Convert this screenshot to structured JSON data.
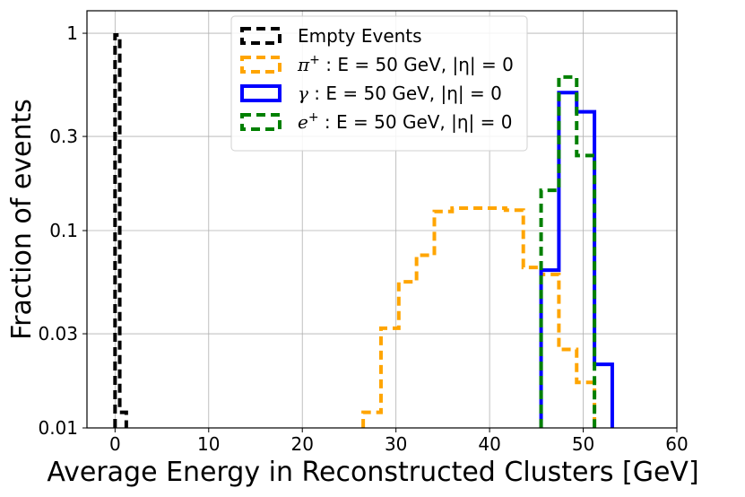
{
  "chart_data": {
    "type": "step",
    "xlabel": "Average Energy in Reconstructed Clusters [GeV]",
    "ylabel": "Fraction of events",
    "xlim": [
      -3,
      60
    ],
    "ylim": [
      0.01,
      1.3
    ],
    "yscale": "log",
    "grid": true,
    "legend_position": "top-center",
    "x_ticks": [
      0,
      10,
      20,
      30,
      40,
      50,
      60
    ],
    "x_tick_labels": [
      "0",
      "10",
      "20",
      "30",
      "40",
      "50",
      "60"
    ],
    "y_ticks": [
      0.01,
      0.03,
      0.1,
      0.3,
      1
    ],
    "y_tick_labels": [
      "0.01",
      "0.03",
      "0.1",
      "0.3",
      "1"
    ],
    "series": [
      {
        "name": "Empty Events",
        "label": "Empty Events",
        "color": "#000000",
        "dash": true,
        "edges": [
          0.0,
          0.5,
          1.2
        ],
        "values": [
          0.98,
          0.012
        ]
      },
      {
        "name": "pi+",
        "label": "π⁺ : E = 50 GeV, |η| = 0",
        "color": "#ffa500",
        "dash": true,
        "edges": [
          26.5,
          28.4,
          30.3,
          32.2,
          34.1,
          36.0,
          37.9,
          39.8,
          41.7,
          43.6,
          45.5,
          47.4,
          49.3,
          51.2
        ],
        "values": [
          0.012,
          0.032,
          0.055,
          0.075,
          0.125,
          0.13,
          0.13,
          0.13,
          0.127,
          0.065,
          0.06,
          0.025,
          0.017
        ]
      },
      {
        "name": "gamma",
        "label": "γ : E = 50 GeV, |η| = 0",
        "color": "#0000ff",
        "dash": false,
        "edges": [
          45.5,
          47.4,
          49.3,
          51.2,
          53.1
        ],
        "values": [
          0.063,
          0.5,
          0.4,
          0.021
        ]
      },
      {
        "name": "e+",
        "label": "e⁺ : E = 50 GeV, |η| = 0",
        "color": "#008000",
        "dash": true,
        "edges": [
          45.5,
          47.4,
          49.3,
          51.2
        ],
        "values": [
          0.16,
          0.6,
          0.24
        ]
      }
    ],
    "legend": [
      {
        "series": "Empty Events",
        "text": "Empty Events"
      },
      {
        "series": "pi+",
        "sym": "π",
        "sup": "+",
        "text": " : E = 50 GeV, |η| = 0"
      },
      {
        "series": "gamma",
        "sym": "γ",
        "sup": "",
        "text": "  : E = 50 GeV, |η| = 0"
      },
      {
        "series": "e+",
        "sym": "e",
        "sup": "+",
        "text": " : E = 50 GeV, |η| = 0"
      }
    ]
  }
}
